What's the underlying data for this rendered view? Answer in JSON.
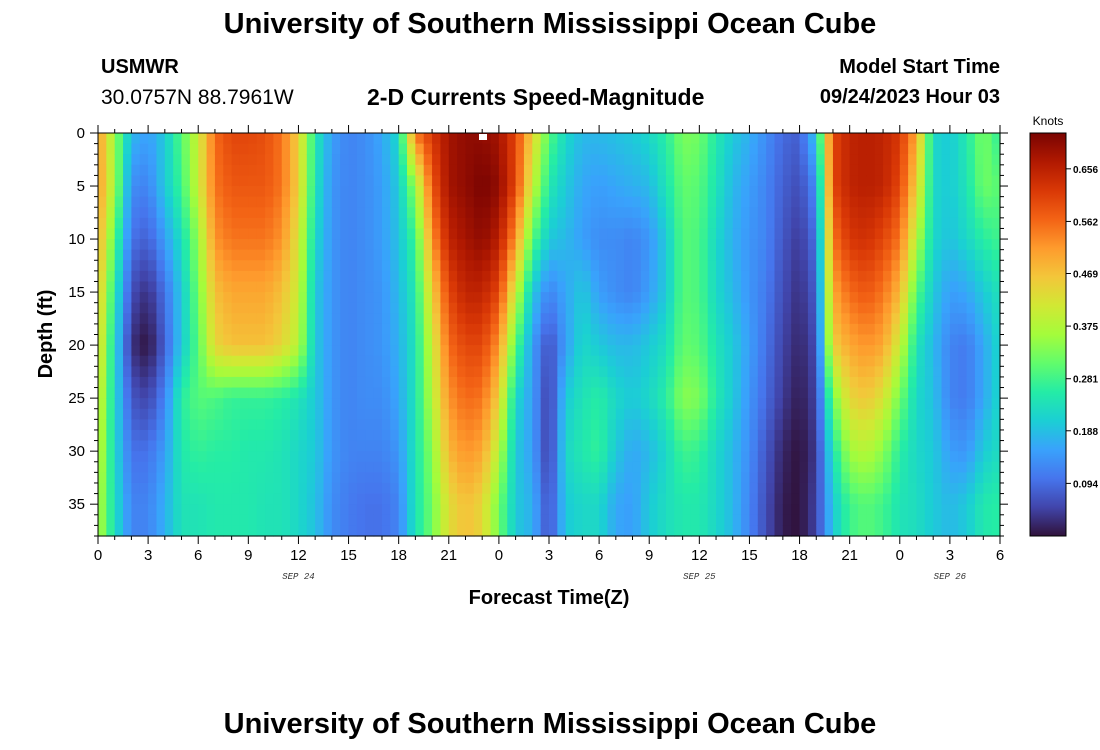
{
  "header": {
    "title": "University of Southern Mississippi Ocean Cube",
    "station_name": "USMWR",
    "station_coords": "30.0757N  88.7961W",
    "subtitle": "2-D Currents Speed-Magnitude",
    "model_start_label": "Model Start Time",
    "model_start_value": "09/24/2023 Hour 03"
  },
  "footer": {
    "title": "University of Southern Mississippi Ocean Cube"
  },
  "colormap": [
    "#30123b",
    "#4145ab",
    "#4675ed",
    "#39a2fc",
    "#1bcfd4",
    "#24eca6",
    "#61fc6c",
    "#a4fc3b",
    "#d1e834",
    "#f3c63a",
    "#fe9b2d",
    "#f36315",
    "#d93806",
    "#b11901",
    "#7a0402"
  ],
  "chart_data": {
    "type": "heatmap",
    "title": "2-D Currents Speed-Magnitude",
    "xlabel": "Forecast Time(Z)",
    "ylabel": "Depth (ft)",
    "x_tick_labels": [
      "0",
      "3",
      "6",
      "9",
      "12",
      "15",
      "18",
      "21",
      "0",
      "3",
      "6",
      "9",
      "12",
      "15",
      "18",
      "21",
      "0",
      "3",
      "6"
    ],
    "x_tick_hours": [
      0,
      3,
      6,
      9,
      12,
      15,
      18,
      21,
      24,
      27,
      30,
      33,
      36,
      39,
      42,
      45,
      48,
      51,
      54
    ],
    "xlim": [
      0,
      54
    ],
    "date_labels": [
      {
        "hour": 12,
        "text": "SEP 24"
      },
      {
        "hour": 36,
        "text": "SEP 25"
      },
      {
        "hour": 51,
        "text": "SEP 26"
      }
    ],
    "y_ticks": [
      0,
      5,
      10,
      15,
      20,
      25,
      30,
      35
    ],
    "ylim": [
      0,
      38
    ],
    "y_inverted": true,
    "colorbar": {
      "title": "Knots",
      "ticks": [
        0.094,
        0.188,
        0.281,
        0.375,
        0.469,
        0.562,
        0.656
      ],
      "range": [
        0.0,
        0.72
      ]
    },
    "profile_depths_ft": [
      0,
      5,
      10,
      15,
      20,
      25,
      30,
      35,
      38
    ],
    "profiles": [
      {
        "hour": 0,
        "values": [
          0.52,
          0.52,
          0.5,
          0.47,
          0.45,
          0.42,
          0.4,
          0.38,
          0.38
        ]
      },
      {
        "hour": 1,
        "values": [
          0.35,
          0.36,
          0.3,
          0.25,
          0.22,
          0.22,
          0.22,
          0.23,
          0.23
        ]
      },
      {
        "hour": 2,
        "values": [
          0.18,
          0.13,
          0.1,
          0.06,
          0.03,
          0.07,
          0.1,
          0.12,
          0.12
        ]
      },
      {
        "hour": 3,
        "values": [
          0.15,
          0.12,
          0.08,
          0.03,
          0.0,
          0.05,
          0.1,
          0.12,
          0.12
        ]
      },
      {
        "hour": 4,
        "values": [
          0.2,
          0.2,
          0.15,
          0.1,
          0.08,
          0.12,
          0.15,
          0.17,
          0.17
        ]
      },
      {
        "hour": 5,
        "values": [
          0.3,
          0.28,
          0.23,
          0.2,
          0.2,
          0.26,
          0.25,
          0.24,
          0.24
        ]
      },
      {
        "hour": 6,
        "values": [
          0.4,
          0.4,
          0.35,
          0.32,
          0.3,
          0.3,
          0.27,
          0.24,
          0.24
        ]
      },
      {
        "hour": 7,
        "values": [
          0.56,
          0.55,
          0.52,
          0.47,
          0.44,
          0.29,
          0.26,
          0.25,
          0.25
        ]
      },
      {
        "hour": 8,
        "values": [
          0.6,
          0.58,
          0.55,
          0.5,
          0.47,
          0.27,
          0.26,
          0.25,
          0.25
        ]
      },
      {
        "hour": 9,
        "values": [
          0.6,
          0.58,
          0.55,
          0.5,
          0.47,
          0.27,
          0.25,
          0.25,
          0.25
        ]
      },
      {
        "hour": 10,
        "values": [
          0.59,
          0.58,
          0.55,
          0.5,
          0.47,
          0.27,
          0.25,
          0.24,
          0.24
        ]
      },
      {
        "hour": 11,
        "values": [
          0.55,
          0.55,
          0.52,
          0.47,
          0.44,
          0.26,
          0.24,
          0.24,
          0.24
        ]
      },
      {
        "hour": 12,
        "values": [
          0.45,
          0.45,
          0.42,
          0.4,
          0.38,
          0.24,
          0.22,
          0.22,
          0.22
        ]
      },
      {
        "hour": 13,
        "values": [
          0.25,
          0.24,
          0.22,
          0.2,
          0.2,
          0.2,
          0.2,
          0.19,
          0.19
        ]
      },
      {
        "hour": 14,
        "values": [
          0.15,
          0.14,
          0.14,
          0.14,
          0.14,
          0.14,
          0.14,
          0.13,
          0.13
        ]
      },
      {
        "hour": 15,
        "values": [
          0.12,
          0.12,
          0.12,
          0.12,
          0.12,
          0.12,
          0.12,
          0.11,
          0.11
        ]
      },
      {
        "hour": 16,
        "values": [
          0.13,
          0.13,
          0.13,
          0.13,
          0.13,
          0.13,
          0.12,
          0.1,
          0.1
        ]
      },
      {
        "hour": 17,
        "values": [
          0.16,
          0.15,
          0.15,
          0.14,
          0.14,
          0.13,
          0.12,
          0.1,
          0.1
        ]
      },
      {
        "hour": 18,
        "values": [
          0.22,
          0.2,
          0.19,
          0.18,
          0.17,
          0.16,
          0.14,
          0.12,
          0.12
        ]
      },
      {
        "hour": 19,
        "values": [
          0.55,
          0.35,
          0.28,
          0.25,
          0.24,
          0.24,
          0.24,
          0.24,
          0.24
        ]
      },
      {
        "hour": 20,
        "values": [
          0.62,
          0.58,
          0.52,
          0.45,
          0.4,
          0.38,
          0.34,
          0.32,
          0.32
        ]
      },
      {
        "hour": 21,
        "values": [
          0.68,
          0.68,
          0.65,
          0.6,
          0.56,
          0.52,
          0.48,
          0.43,
          0.43
        ]
      },
      {
        "hour": 22,
        "values": [
          0.7,
          0.7,
          0.68,
          0.65,
          0.6,
          0.56,
          0.52,
          0.47,
          0.47
        ]
      },
      {
        "hour": 23,
        "values": [
          0.7,
          0.72,
          0.7,
          0.65,
          0.6,
          0.55,
          0.5,
          0.44,
          0.44
        ]
      },
      {
        "hour": 24,
        "values": [
          0.68,
          0.7,
          0.66,
          0.6,
          0.52,
          0.45,
          0.38,
          0.32,
          0.32
        ]
      },
      {
        "hour": 25,
        "values": [
          0.6,
          0.6,
          0.52,
          0.4,
          0.3,
          0.22,
          0.2,
          0.2,
          0.2
        ]
      },
      {
        "hour": 26,
        "values": [
          0.45,
          0.4,
          0.3,
          0.2,
          0.15,
          0.15,
          0.15,
          0.17,
          0.17
        ]
      },
      {
        "hour": 27,
        "values": [
          0.3,
          0.25,
          0.2,
          0.12,
          0.06,
          0.04,
          0.04,
          0.06,
          0.06
        ]
      },
      {
        "hour": 28,
        "values": [
          0.22,
          0.2,
          0.18,
          0.16,
          0.15,
          0.2,
          0.22,
          0.2,
          0.2
        ]
      },
      {
        "hour": 29,
        "values": [
          0.18,
          0.16,
          0.15,
          0.2,
          0.22,
          0.24,
          0.25,
          0.22,
          0.22
        ]
      },
      {
        "hour": 30,
        "values": [
          0.18,
          0.15,
          0.13,
          0.15,
          0.2,
          0.26,
          0.27,
          0.22,
          0.22
        ]
      },
      {
        "hour": 31,
        "values": [
          0.19,
          0.16,
          0.13,
          0.13,
          0.18,
          0.22,
          0.2,
          0.16,
          0.16
        ]
      },
      {
        "hour": 32,
        "values": [
          0.2,
          0.17,
          0.12,
          0.12,
          0.18,
          0.2,
          0.16,
          0.15,
          0.15
        ]
      },
      {
        "hour": 33,
        "values": [
          0.22,
          0.18,
          0.14,
          0.15,
          0.2,
          0.22,
          0.18,
          0.2,
          0.2
        ]
      },
      {
        "hour": 34,
        "values": [
          0.26,
          0.24,
          0.2,
          0.2,
          0.23,
          0.26,
          0.22,
          0.23,
          0.23
        ]
      },
      {
        "hour": 35,
        "values": [
          0.33,
          0.31,
          0.3,
          0.3,
          0.31,
          0.34,
          0.28,
          0.25,
          0.25
        ]
      },
      {
        "hour": 36,
        "values": [
          0.32,
          0.3,
          0.29,
          0.29,
          0.3,
          0.33,
          0.27,
          0.25,
          0.25
        ]
      },
      {
        "hour": 37,
        "values": [
          0.25,
          0.24,
          0.22,
          0.22,
          0.24,
          0.25,
          0.22,
          0.22,
          0.22
        ]
      },
      {
        "hour": 38,
        "values": [
          0.2,
          0.18,
          0.17,
          0.18,
          0.2,
          0.2,
          0.18,
          0.18,
          0.18
        ]
      },
      {
        "hour": 39,
        "values": [
          0.17,
          0.15,
          0.14,
          0.14,
          0.15,
          0.14,
          0.13,
          0.12,
          0.12
        ]
      },
      {
        "hour": 40,
        "values": [
          0.13,
          0.12,
          0.12,
          0.11,
          0.1,
          0.09,
          0.07,
          0.06,
          0.06
        ]
      },
      {
        "hour": 41,
        "values": [
          0.09,
          0.08,
          0.07,
          0.06,
          0.05,
          0.04,
          0.02,
          0.01,
          0.01
        ]
      },
      {
        "hour": 42,
        "values": [
          0.08,
          0.06,
          0.04,
          0.03,
          0.02,
          0.01,
          0.0,
          0.0,
          0.0
        ]
      },
      {
        "hour": 43,
        "values": [
          0.2,
          0.13,
          0.1,
          0.08,
          0.06,
          0.05,
          0.04,
          0.05,
          0.05
        ]
      },
      {
        "hour": 44,
        "values": [
          0.6,
          0.6,
          0.55,
          0.5,
          0.45,
          0.32,
          0.24,
          0.2,
          0.2
        ]
      },
      {
        "hour": 45,
        "values": [
          0.65,
          0.65,
          0.62,
          0.56,
          0.5,
          0.44,
          0.36,
          0.28,
          0.28
        ]
      },
      {
        "hour": 46,
        "values": [
          0.66,
          0.66,
          0.63,
          0.58,
          0.52,
          0.46,
          0.38,
          0.3,
          0.3
        ]
      },
      {
        "hour": 47,
        "values": [
          0.65,
          0.65,
          0.6,
          0.55,
          0.5,
          0.42,
          0.34,
          0.28,
          0.28
        ]
      },
      {
        "hour": 48,
        "values": [
          0.62,
          0.6,
          0.55,
          0.48,
          0.4,
          0.32,
          0.26,
          0.24,
          0.24
        ]
      },
      {
        "hour": 49,
        "values": [
          0.5,
          0.45,
          0.38,
          0.3,
          0.24,
          0.22,
          0.22,
          0.23,
          0.23
        ]
      },
      {
        "hour": 50,
        "values": [
          0.22,
          0.22,
          0.22,
          0.2,
          0.18,
          0.19,
          0.2,
          0.2,
          0.2
        ]
      },
      {
        "hour": 51,
        "values": [
          0.2,
          0.2,
          0.19,
          0.15,
          0.12,
          0.12,
          0.15,
          0.18,
          0.18
        ]
      },
      {
        "hour": 52,
        "values": [
          0.25,
          0.24,
          0.22,
          0.16,
          0.11,
          0.11,
          0.14,
          0.2,
          0.2
        ]
      },
      {
        "hour": 53,
        "values": [
          0.33,
          0.32,
          0.26,
          0.2,
          0.16,
          0.16,
          0.2,
          0.25,
          0.25
        ]
      },
      {
        "hour": 54,
        "values": [
          0.26,
          0.3,
          0.28,
          0.24,
          0.22,
          0.22,
          0.23,
          0.26,
          0.26
        ]
      }
    ]
  }
}
